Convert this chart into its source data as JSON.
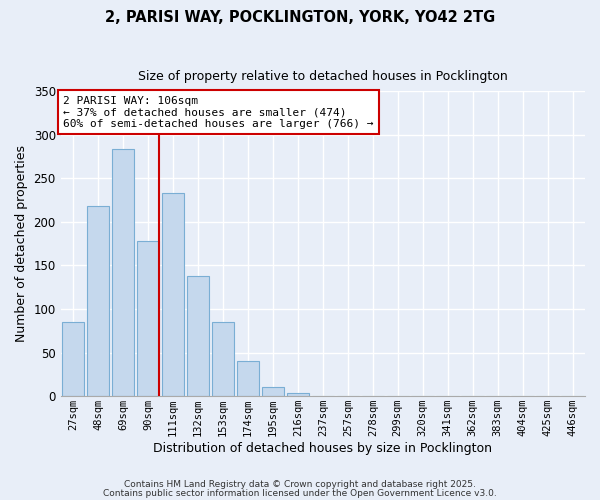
{
  "title_line1": "2, PARISI WAY, POCKLINGTON, YORK, YO42 2TG",
  "title_line2": "Size of property relative to detached houses in Pocklington",
  "xlabel": "Distribution of detached houses by size in Pocklington",
  "ylabel": "Number of detached properties",
  "bar_labels": [
    "27sqm",
    "48sqm",
    "69sqm",
    "90sqm",
    "111sqm",
    "132sqm",
    "153sqm",
    "174sqm",
    "195sqm",
    "216sqm",
    "237sqm",
    "257sqm",
    "278sqm",
    "299sqm",
    "320sqm",
    "341sqm",
    "362sqm",
    "383sqm",
    "404sqm",
    "425sqm",
    "446sqm"
  ],
  "bar_values": [
    85,
    218,
    284,
    178,
    233,
    138,
    85,
    40,
    11,
    4,
    0,
    0,
    0,
    0,
    0,
    0,
    0,
    0,
    0,
    0,
    0
  ],
  "bar_color": "#c5d8ed",
  "bar_edge_color": "#7aaed4",
  "vline_x": 3.0,
  "vline_color": "#cc0000",
  "annotation_title": "2 PARISI WAY: 106sqm",
  "annotation_line1": "← 37% of detached houses are smaller (474)",
  "annotation_line2": "60% of semi-detached houses are larger (766) →",
  "annotation_box_facecolor": "#ffffff",
  "annotation_box_edgecolor": "#cc0000",
  "ylim": [
    0,
    350
  ],
  "yticks": [
    0,
    50,
    100,
    150,
    200,
    250,
    300,
    350
  ],
  "footer1": "Contains HM Land Registry data © Crown copyright and database right 2025.",
  "footer2": "Contains public sector information licensed under the Open Government Licence v3.0.",
  "background_color": "#e8eef8",
  "grid_color": "#ffffff"
}
